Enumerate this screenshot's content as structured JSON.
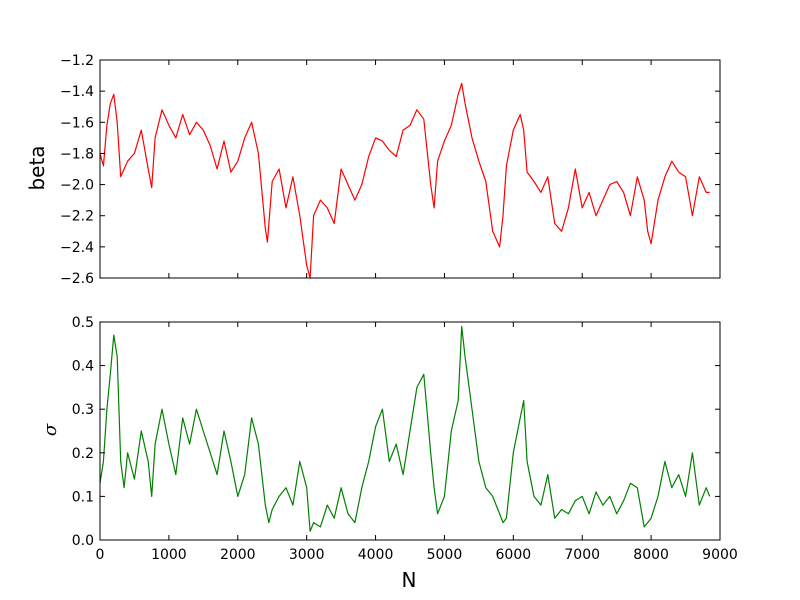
{
  "chart_data": [
    {
      "type": "line",
      "panel": "top",
      "ylabel": "beta",
      "xlabel": "",
      "xlim": [
        0,
        9000
      ],
      "ylim": [
        -2.6,
        -1.2
      ],
      "yticks": [
        -2.6,
        -2.4,
        -2.2,
        -2.0,
        -1.8,
        -1.6,
        -1.4,
        -1.2
      ],
      "ytick_labels": [
        "−2.6",
        "−2.4",
        "−2.2",
        "−2.0",
        "−1.8",
        "−1.6",
        "−1.4",
        "−1.2"
      ],
      "xticks": [
        0,
        1000,
        2000,
        3000,
        4000,
        5000,
        6000,
        7000,
        8000,
        9000
      ],
      "show_xtick_labels": false,
      "grid": false,
      "series": [
        {
          "color": "#ff0000",
          "x": [
            0,
            50,
            100,
            150,
            200,
            250,
            300,
            400,
            500,
            600,
            700,
            750,
            800,
            900,
            1000,
            1100,
            1200,
            1300,
            1400,
            1500,
            1600,
            1700,
            1800,
            1900,
            2000,
            2100,
            2200,
            2300,
            2400,
            2430,
            2500,
            2600,
            2700,
            2800,
            2900,
            3000,
            3050,
            3100,
            3200,
            3300,
            3400,
            3500,
            3600,
            3700,
            3800,
            3900,
            4000,
            4100,
            4200,
            4300,
            4400,
            4500,
            4600,
            4700,
            4800,
            4850,
            4900,
            5000,
            5100,
            5200,
            5250,
            5300,
            5400,
            5500,
            5600,
            5700,
            5800,
            5850,
            5900,
            6000,
            6100,
            6150,
            6200,
            6300,
            6400,
            6500,
            6600,
            6700,
            6800,
            6900,
            7000,
            7100,
            7200,
            7300,
            7400,
            7500,
            7600,
            7700,
            7800,
            7900,
            7950,
            8000,
            8100,
            8200,
            8300,
            8400,
            8500,
            8600,
            8700,
            8800,
            8850
          ],
          "y": [
            -1.8,
            -1.88,
            -1.62,
            -1.48,
            -1.42,
            -1.6,
            -1.95,
            -1.85,
            -1.8,
            -1.65,
            -1.9,
            -2.02,
            -1.7,
            -1.52,
            -1.62,
            -1.7,
            -1.55,
            -1.68,
            -1.6,
            -1.65,
            -1.75,
            -1.9,
            -1.72,
            -1.92,
            -1.85,
            -1.7,
            -1.6,
            -1.8,
            -2.28,
            -2.37,
            -1.98,
            -1.9,
            -2.15,
            -1.95,
            -2.2,
            -2.52,
            -2.6,
            -2.2,
            -2.1,
            -2.15,
            -2.25,
            -1.9,
            -2.0,
            -2.1,
            -2.0,
            -1.82,
            -1.7,
            -1.72,
            -1.78,
            -1.82,
            -1.65,
            -1.62,
            -1.52,
            -1.58,
            -2.0,
            -2.15,
            -1.85,
            -1.72,
            -1.62,
            -1.42,
            -1.35,
            -1.48,
            -1.7,
            -1.85,
            -1.98,
            -2.3,
            -2.4,
            -2.2,
            -1.88,
            -1.65,
            -1.55,
            -1.65,
            -1.92,
            -1.98,
            -2.05,
            -1.95,
            -2.25,
            -2.3,
            -2.15,
            -1.9,
            -2.15,
            -2.05,
            -2.2,
            -2.1,
            -2.0,
            -1.98,
            -2.05,
            -2.2,
            -1.95,
            -2.1,
            -2.3,
            -2.38,
            -2.1,
            -1.95,
            -1.85,
            -1.92,
            -1.95,
            -2.2,
            -1.95,
            -2.05,
            -2.05
          ]
        }
      ]
    },
    {
      "type": "line",
      "panel": "bottom",
      "ylabel": "σ",
      "xlabel": "N",
      "xlim": [
        0,
        9000
      ],
      "ylim": [
        0.0,
        0.5
      ],
      "yticks": [
        0.0,
        0.1,
        0.2,
        0.3,
        0.4,
        0.5
      ],
      "ytick_labels": [
        "0.0",
        "0.1",
        "0.2",
        "0.3",
        "0.4",
        "0.5"
      ],
      "xticks": [
        0,
        1000,
        2000,
        3000,
        4000,
        5000,
        6000,
        7000,
        8000,
        9000
      ],
      "xtick_labels": [
        "0",
        "1000",
        "2000",
        "3000",
        "4000",
        "5000",
        "6000",
        "7000",
        "8000",
        "9000"
      ],
      "grid": false,
      "series": [
        {
          "color": "#008000",
          "x": [
            0,
            50,
            100,
            150,
            200,
            250,
            300,
            350,
            400,
            500,
            600,
            700,
            750,
            800,
            900,
            1000,
            1100,
            1200,
            1300,
            1400,
            1500,
            1600,
            1700,
            1800,
            1900,
            2000,
            2100,
            2200,
            2300,
            2400,
            2450,
            2500,
            2600,
            2700,
            2800,
            2900,
            3000,
            3050,
            3100,
            3200,
            3300,
            3400,
            3500,
            3600,
            3700,
            3800,
            3900,
            4000,
            4100,
            4200,
            4300,
            4400,
            4500,
            4600,
            4700,
            4800,
            4850,
            4900,
            5000,
            5100,
            5200,
            5250,
            5300,
            5400,
            5500,
            5600,
            5700,
            5800,
            5850,
            5900,
            6000,
            6100,
            6150,
            6200,
            6300,
            6400,
            6500,
            6600,
            6700,
            6800,
            6900,
            7000,
            7100,
            7200,
            7300,
            7400,
            7500,
            7600,
            7700,
            7800,
            7900,
            7950,
            8000,
            8100,
            8200,
            8300,
            8400,
            8500,
            8600,
            8700,
            8800,
            8850
          ],
          "y": [
            0.13,
            0.18,
            0.3,
            0.38,
            0.47,
            0.42,
            0.18,
            0.12,
            0.2,
            0.14,
            0.25,
            0.18,
            0.1,
            0.22,
            0.3,
            0.22,
            0.15,
            0.28,
            0.22,
            0.3,
            0.25,
            0.2,
            0.15,
            0.25,
            0.18,
            0.1,
            0.15,
            0.28,
            0.22,
            0.08,
            0.04,
            0.07,
            0.1,
            0.12,
            0.08,
            0.18,
            0.12,
            0.02,
            0.04,
            0.03,
            0.08,
            0.05,
            0.12,
            0.06,
            0.04,
            0.12,
            0.18,
            0.26,
            0.3,
            0.18,
            0.22,
            0.15,
            0.25,
            0.35,
            0.38,
            0.2,
            0.12,
            0.06,
            0.1,
            0.25,
            0.32,
            0.49,
            0.42,
            0.3,
            0.18,
            0.12,
            0.1,
            0.06,
            0.04,
            0.05,
            0.2,
            0.28,
            0.32,
            0.18,
            0.1,
            0.08,
            0.15,
            0.05,
            0.07,
            0.06,
            0.09,
            0.1,
            0.06,
            0.11,
            0.08,
            0.1,
            0.06,
            0.09,
            0.13,
            0.12,
            0.03,
            0.04,
            0.05,
            0.1,
            0.18,
            0.12,
            0.15,
            0.1,
            0.2,
            0.08,
            0.12,
            0.1
          ]
        }
      ]
    }
  ]
}
